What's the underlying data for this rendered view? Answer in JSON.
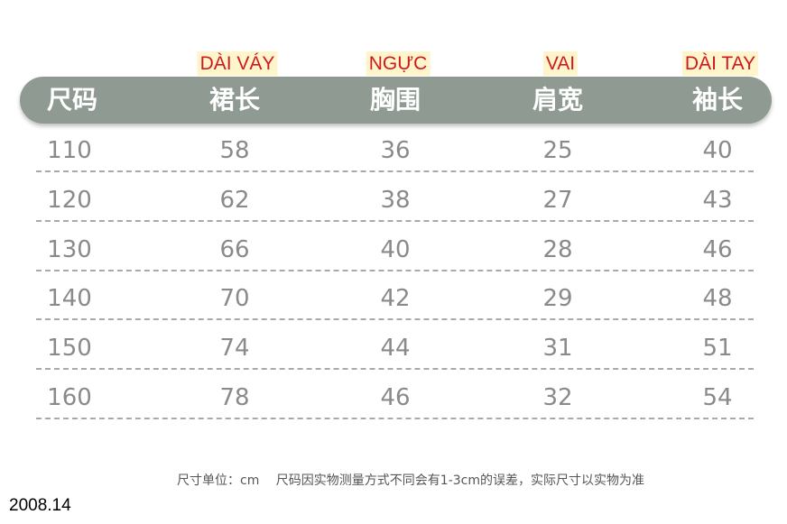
{
  "annotations": [
    "DÀI VÁY",
    "NGỰC",
    "VAI",
    "DÀI TAY"
  ],
  "table": {
    "header": [
      "尺码",
      "裙长",
      "胸围",
      "肩宽",
      "袖长"
    ],
    "rows": [
      [
        "110",
        "58",
        "36",
        "25",
        "40"
      ],
      [
        "120",
        "62",
        "38",
        "27",
        "43"
      ],
      [
        "130",
        "66",
        "40",
        "28",
        "46"
      ],
      [
        "140",
        "70",
        "42",
        "29",
        "48"
      ],
      [
        "150",
        "74",
        "44",
        "31",
        "51"
      ],
      [
        "160",
        "78",
        "46",
        "32",
        "54"
      ]
    ]
  },
  "footnote": "尺寸单位：cm　 尺码因实物测量方式不同会有1-3cm的误差，实际尺寸以实物为准",
  "corner_label": "2008.14"
}
